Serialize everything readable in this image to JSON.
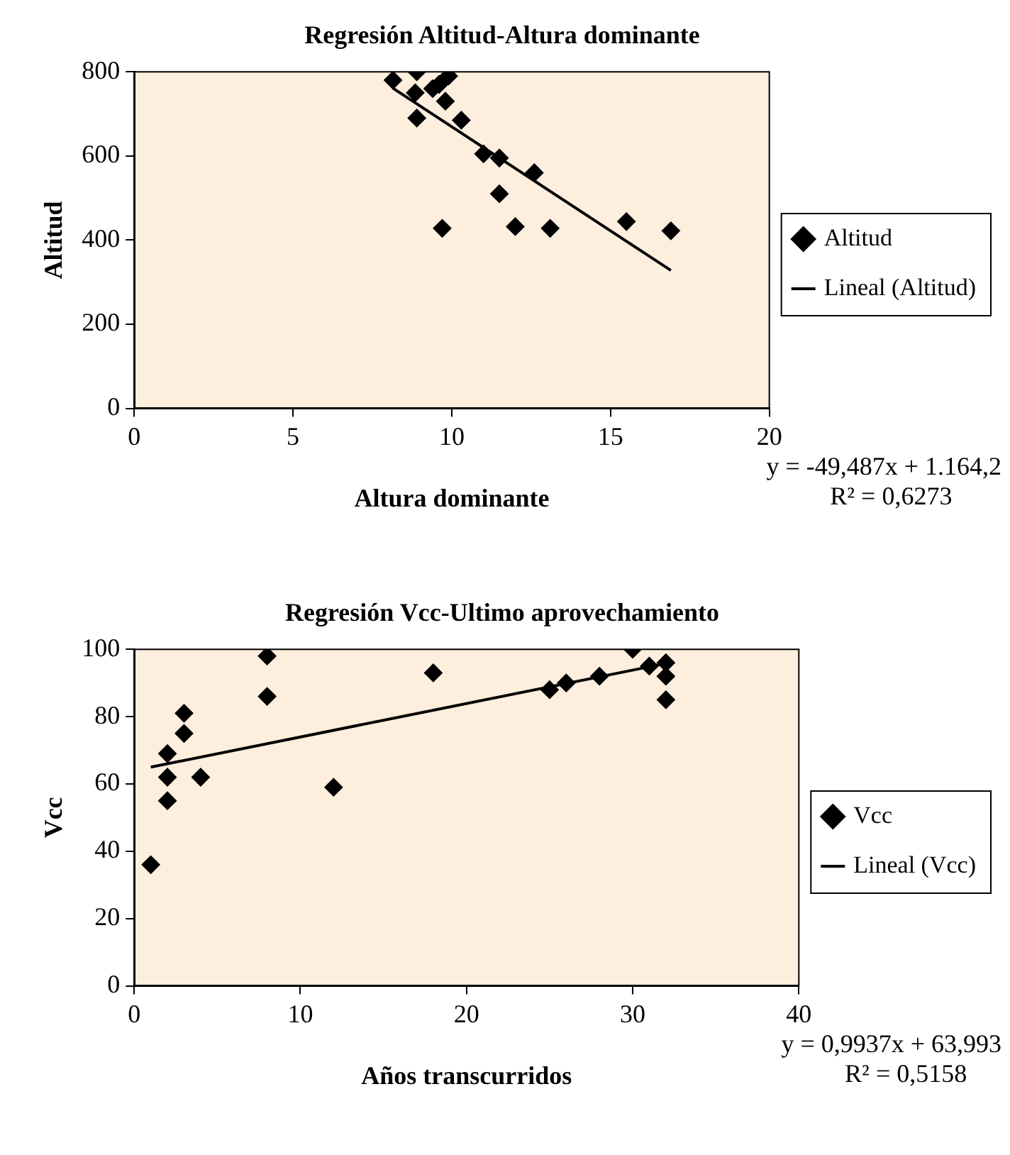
{
  "chart_data": [
    {
      "type": "scatter",
      "title": "Regresión Altitud-Altura dominante",
      "xlabel": "Altura dominante",
      "ylabel": "Altitud",
      "xlim": [
        0,
        20
      ],
      "ylim": [
        0,
        800
      ],
      "xticks": [
        0,
        5,
        10,
        15,
        20
      ],
      "yticks": [
        0,
        200,
        400,
        600,
        800
      ],
      "grid": false,
      "legend": "right",
      "marker": "diamond",
      "annotations": [
        "y = -49,487x + 1.164,2",
        "R² = 0,6273"
      ],
      "series": [
        {
          "name": "Altitud",
          "color": "#000000",
          "x": [
            8.15,
            8.9,
            8.85,
            9.4,
            9.6,
            9.9,
            9.8,
            8.9,
            10.3,
            11,
            11.5,
            12.6,
            11.5,
            9.7,
            12,
            13.1,
            15.5,
            16.9
          ],
          "values": [
            780,
            800,
            750,
            760,
            770,
            790,
            730,
            690,
            685,
            605,
            595,
            560,
            510,
            428,
            432,
            428,
            444,
            422
          ]
        },
        {
          "name": "Lineal (Altitud)",
          "type": "line",
          "marker": "none",
          "color": "#000000",
          "x": [
            8.15,
            16.9
          ],
          "values": [
            761,
            328
          ]
        }
      ]
    },
    {
      "type": "scatter",
      "title": "Regresión Vcc-Ultimo aprovechamiento",
      "xlabel": "Años transcurridos",
      "ylabel": "Vcc",
      "xlim": [
        0,
        40
      ],
      "ylim": [
        0,
        100
      ],
      "xticks": [
        0,
        10,
        20,
        30,
        40
      ],
      "yticks": [
        0,
        20,
        40,
        60,
        80,
        100
      ],
      "grid": false,
      "legend": "right",
      "marker": "diamond",
      "annotations": [
        "y = 0,9937x + 63,993",
        "R² = 0,5158"
      ],
      "series": [
        {
          "name": "Vcc",
          "color": "#000000",
          "x": [
            1,
            2,
            2,
            2,
            3,
            3,
            4,
            8,
            8,
            12,
            18,
            25,
            26,
            28,
            30,
            31,
            32,
            32,
            32
          ],
          "values": [
            36,
            69,
            62,
            55,
            81,
            75,
            62,
            98,
            86,
            59,
            93,
            88,
            90,
            92,
            100,
            95,
            96,
            92,
            85
          ]
        },
        {
          "name": "Lineal (Vcc)",
          "type": "line",
          "marker": "none",
          "color": "#000000",
          "x": [
            1,
            32
          ],
          "values": [
            65,
            95.8
          ]
        }
      ]
    }
  ]
}
